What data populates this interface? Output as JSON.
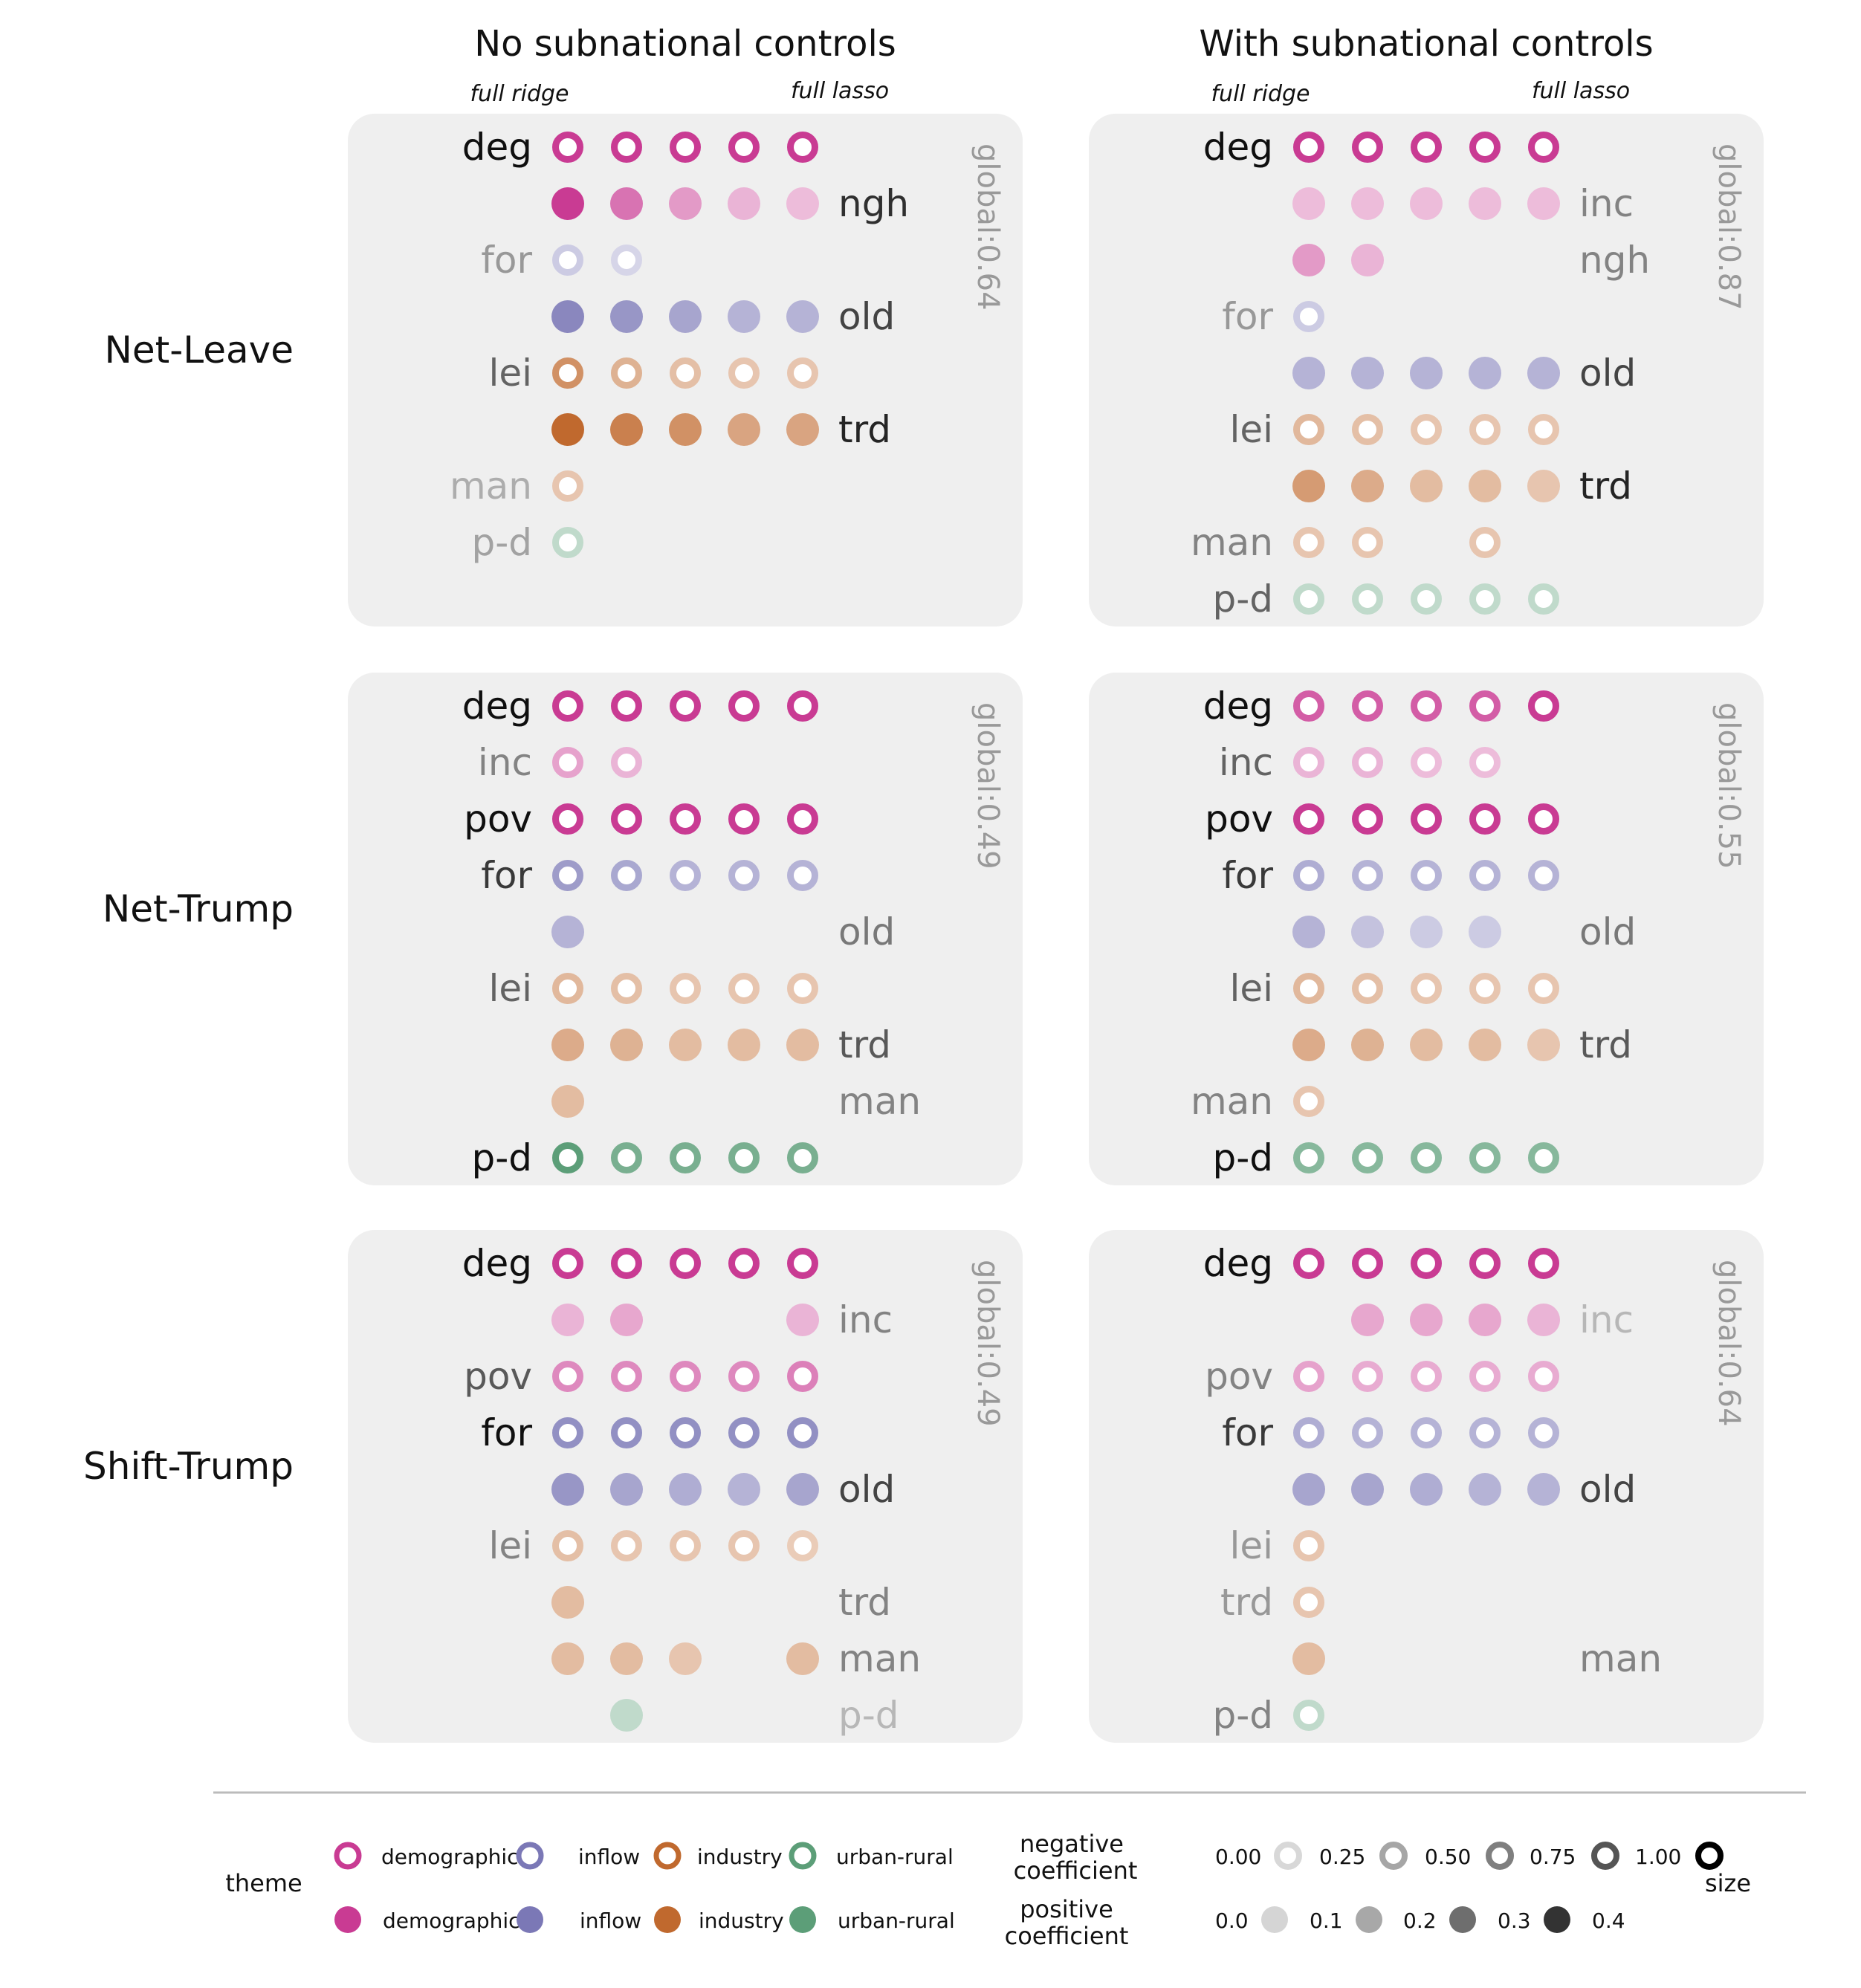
{
  "chart_data": {
    "type": "scatter",
    "columns": [
      {
        "title": "No subnational controls",
        "left_note": "full ridge",
        "right_note": "full lasso"
      },
      {
        "title": "With subnational controls",
        "left_note": "full ridge",
        "right_note": "full lasso"
      }
    ],
    "models": [
      "full ridge",
      "",
      "",
      "",
      "full lasso"
    ],
    "rows": [
      "Net-Leave",
      "Net-Trump",
      "Shift-Trump"
    ],
    "theme_colors": {
      "demographics": "#c93b93",
      "inflow": "#7b78b6",
      "industry": "#c0692e",
      "urban-rural": "#5c9e78"
    },
    "panels": [
      {
        "row": "Net-Leave",
        "column": "No subnational controls",
        "global": "global:0.64",
        "variables": [
          {
            "label": "deg",
            "side": "left",
            "theme": "demographics",
            "sign": "negative",
            "values": [
              1.0,
              1.0,
              1.0,
              1.0,
              1.0
            ],
            "freq": 1.0
          },
          {
            "label": "ngh",
            "side": "right",
            "theme": "demographics",
            "sign": "positive",
            "values": [
              0.4,
              0.27,
              0.18,
              0.12,
              0.1
            ],
            "freq": 0.85
          },
          {
            "label": "for",
            "side": "left",
            "theme": "inflow",
            "sign": "negative",
            "values": [
              0.3,
              0.22,
              null,
              null,
              null
            ],
            "freq": 0.35
          },
          {
            "label": "old",
            "side": "right",
            "theme": "inflow",
            "sign": "positive",
            "values": [
              0.35,
              0.3,
              0.25,
              0.2,
              0.2
            ],
            "freq": 0.75
          },
          {
            "label": "lei",
            "side": "left",
            "theme": "industry",
            "sign": "negative",
            "values": [
              0.7,
              0.45,
              0.35,
              0.3,
              0.3
            ],
            "freq": 0.6
          },
          {
            "label": "trd",
            "side": "right",
            "theme": "industry",
            "sign": "positive",
            "values": [
              0.4,
              0.33,
              0.28,
              0.22,
              0.22
            ],
            "freq": 0.9
          },
          {
            "label": "man",
            "side": "left",
            "theme": "industry",
            "sign": "negative",
            "values": [
              0.3,
              null,
              null,
              null,
              null
            ],
            "freq": 0.25
          },
          {
            "label": "p-d",
            "side": "left",
            "theme": "urban-rural",
            "sign": "negative",
            "values": [
              0.3,
              null,
              null,
              null,
              null
            ],
            "freq": 0.3
          }
        ]
      },
      {
        "row": "Net-Leave",
        "column": "With subnational controls",
        "global": "global:0.87",
        "variables": [
          {
            "label": "deg",
            "side": "left",
            "theme": "demographics",
            "sign": "negative",
            "values": [
              1.0,
              1.0,
              1.0,
              1.0,
              1.0
            ],
            "freq": 1.0
          },
          {
            "label": "inc",
            "side": "right",
            "theme": "demographics",
            "sign": "positive",
            "values": [
              0.1,
              0.1,
              0.1,
              0.1,
              0.1
            ],
            "freq": 0.45
          },
          {
            "label": "ngh",
            "side": "right",
            "theme": "demographics",
            "sign": "positive",
            "values": [
              0.18,
              0.12,
              null,
              null,
              null
            ],
            "freq": 0.45
          },
          {
            "label": "for",
            "side": "left",
            "theme": "inflow",
            "sign": "negative",
            "values": [
              0.3,
              null,
              null,
              null,
              null
            ],
            "freq": 0.35
          },
          {
            "label": "old",
            "side": "right",
            "theme": "inflow",
            "sign": "positive",
            "values": [
              0.2,
              0.2,
              0.2,
              0.2,
              0.2
            ],
            "freq": 0.75
          },
          {
            "label": "lei",
            "side": "left",
            "theme": "industry",
            "sign": "negative",
            "values": [
              0.4,
              0.35,
              0.3,
              0.3,
              0.3
            ],
            "freq": 0.6
          },
          {
            "label": "trd",
            "side": "right",
            "theme": "industry",
            "sign": "positive",
            "values": [
              0.25,
              0.2,
              0.15,
              0.15,
              0.12
            ],
            "freq": 0.9
          },
          {
            "label": "man",
            "side": "left",
            "theme": "industry",
            "sign": "negative",
            "values": [
              0.3,
              0.3,
              null,
              0.3,
              null
            ],
            "freq": 0.45
          },
          {
            "label": "p-d",
            "side": "left",
            "theme": "urban-rural",
            "sign": "negative",
            "values": [
              0.3,
              0.3,
              0.3,
              0.3,
              0.3
            ],
            "freq": 0.6
          }
        ]
      },
      {
        "row": "Net-Trump",
        "column": "No subnational controls",
        "global": "global:0.49",
        "variables": [
          {
            "label": "deg",
            "side": "left",
            "theme": "demographics",
            "sign": "negative",
            "values": [
              1.0,
              1.0,
              1.0,
              1.0,
              1.0
            ],
            "freq": 1.0
          },
          {
            "label": "inc",
            "side": "left",
            "theme": "demographics",
            "sign": "negative",
            "values": [
              0.4,
              0.3,
              null,
              null,
              null
            ],
            "freq": 0.45
          },
          {
            "label": "pov",
            "side": "left",
            "theme": "demographics",
            "sign": "negative",
            "values": [
              1.0,
              1.0,
              1.0,
              1.0,
              1.0
            ],
            "freq": 1.0
          },
          {
            "label": "for",
            "side": "left",
            "theme": "inflow",
            "sign": "negative",
            "values": [
              0.7,
              0.6,
              0.5,
              0.5,
              0.5
            ],
            "freq": 0.8
          },
          {
            "label": "old",
            "side": "right",
            "theme": "inflow",
            "sign": "positive",
            "values": [
              0.2,
              null,
              null,
              null,
              null
            ],
            "freq": 0.5
          },
          {
            "label": "lei",
            "side": "left",
            "theme": "industry",
            "sign": "negative",
            "values": [
              0.4,
              0.35,
              0.3,
              0.3,
              0.3
            ],
            "freq": 0.6
          },
          {
            "label": "trd",
            "side": "right",
            "theme": "industry",
            "sign": "positive",
            "values": [
              0.2,
              0.18,
              0.15,
              0.15,
              0.15
            ],
            "freq": 0.65
          },
          {
            "label": "man",
            "side": "right",
            "theme": "industry",
            "sign": "positive",
            "values": [
              0.15,
              null,
              null,
              null,
              null
            ],
            "freq": 0.45
          },
          {
            "label": "p-d",
            "side": "left",
            "theme": "urban-rural",
            "sign": "negative",
            "values": [
              1.0,
              0.8,
              0.8,
              0.8,
              0.8
            ],
            "freq": 1.0
          }
        ]
      },
      {
        "row": "Net-Trump",
        "column": "With subnational controls",
        "global": "global:0.55",
        "variables": [
          {
            "label": "deg",
            "side": "left",
            "theme": "demographics",
            "sign": "negative",
            "values": [
              0.8,
              0.8,
              0.8,
              0.8,
              1.0
            ],
            "freq": 1.0
          },
          {
            "label": "inc",
            "side": "left",
            "theme": "demographics",
            "sign": "negative",
            "values": [
              0.3,
              0.3,
              0.25,
              0.25,
              null
            ],
            "freq": 0.6
          },
          {
            "label": "pov",
            "side": "left",
            "theme": "demographics",
            "sign": "negative",
            "values": [
              1.0,
              1.0,
              1.0,
              1.0,
              1.0
            ],
            "freq": 1.0
          },
          {
            "label": "for",
            "side": "left",
            "theme": "inflow",
            "sign": "negative",
            "values": [
              0.55,
              0.5,
              0.5,
              0.5,
              0.5
            ],
            "freq": 0.8
          },
          {
            "label": "old",
            "side": "right",
            "theme": "inflow",
            "sign": "positive",
            "values": [
              0.2,
              0.15,
              0.12,
              0.12,
              null
            ],
            "freq": 0.5
          },
          {
            "label": "lei",
            "side": "left",
            "theme": "industry",
            "sign": "negative",
            "values": [
              0.4,
              0.35,
              0.3,
              0.3,
              0.3
            ],
            "freq": 0.6
          },
          {
            "label": "trd",
            "side": "right",
            "theme": "industry",
            "sign": "positive",
            "values": [
              0.2,
              0.18,
              0.15,
              0.15,
              0.12
            ],
            "freq": 0.65
          },
          {
            "label": "man",
            "side": "left",
            "theme": "industry",
            "sign": "negative",
            "values": [
              0.3,
              null,
              null,
              null,
              null
            ],
            "freq": 0.45
          },
          {
            "label": "p-d",
            "side": "left",
            "theme": "urban-rural",
            "sign": "negative",
            "values": [
              0.7,
              0.7,
              0.7,
              0.7,
              0.7
            ],
            "freq": 1.0
          }
        ]
      },
      {
        "row": "Shift-Trump",
        "column": "No subnational controls",
        "global": "global:0.49",
        "variables": [
          {
            "label": "deg",
            "side": "left",
            "theme": "demographics",
            "sign": "negative",
            "values": [
              1.0,
              1.0,
              1.0,
              1.0,
              1.0
            ],
            "freq": 1.0
          },
          {
            "label": "inc",
            "side": "right",
            "theme": "demographics",
            "sign": "positive",
            "values": [
              0.12,
              0.15,
              null,
              null,
              0.12
            ],
            "freq": 0.45
          },
          {
            "label": "pov",
            "side": "left",
            "theme": "demographics",
            "sign": "negative",
            "values": [
              0.55,
              0.55,
              0.55,
              0.55,
              0.6
            ],
            "freq": 0.65
          },
          {
            "label": "for",
            "side": "left",
            "theme": "inflow",
            "sign": "negative",
            "values": [
              0.8,
              0.8,
              0.8,
              0.8,
              0.8
            ],
            "freq": 1.0
          },
          {
            "label": "old",
            "side": "right",
            "theme": "inflow",
            "sign": "positive",
            "values": [
              0.3,
              0.25,
              0.22,
              0.2,
              0.25
            ],
            "freq": 0.75
          },
          {
            "label": "lei",
            "side": "left",
            "theme": "industry",
            "sign": "negative",
            "values": [
              0.35,
              0.3,
              0.3,
              0.3,
              0.25
            ],
            "freq": 0.45
          },
          {
            "label": "trd",
            "side": "right",
            "theme": "industry",
            "sign": "positive",
            "values": [
              0.15,
              null,
              null,
              null,
              null
            ],
            "freq": 0.45
          },
          {
            "label": "man",
            "side": "right",
            "theme": "industry",
            "sign": "positive",
            "values": [
              0.15,
              0.15,
              0.12,
              null,
              0.15
            ],
            "freq": 0.45
          },
          {
            "label": "p-d",
            "side": "right",
            "theme": "urban-rural",
            "sign": "positive",
            "values": [
              null,
              0.12,
              null,
              null,
              null
            ],
            "freq": 0.2
          }
        ]
      },
      {
        "row": "Shift-Trump",
        "column": "With subnational controls",
        "global": "global:0.64",
        "variables": [
          {
            "label": "deg",
            "side": "left",
            "theme": "demographics",
            "sign": "negative",
            "values": [
              1.0,
              1.0,
              1.0,
              1.0,
              1.0
            ],
            "freq": 1.0
          },
          {
            "label": "inc",
            "side": "right",
            "theme": "demographics",
            "sign": "positive",
            "values": [
              null,
              0.15,
              0.15,
              0.15,
              0.12
            ],
            "freq": 0.2
          },
          {
            "label": "pov",
            "side": "left",
            "theme": "demographics",
            "sign": "negative",
            "values": [
              0.4,
              0.35,
              0.35,
              0.35,
              0.35
            ],
            "freq": 0.45
          },
          {
            "label": "for",
            "side": "left",
            "theme": "inflow",
            "sign": "negative",
            "values": [
              0.55,
              0.5,
              0.5,
              0.5,
              0.5
            ],
            "freq": 0.8
          },
          {
            "label": "old",
            "side": "right",
            "theme": "inflow",
            "sign": "positive",
            "values": [
              0.25,
              0.25,
              0.22,
              0.2,
              0.2
            ],
            "freq": 0.75
          },
          {
            "label": "lei",
            "side": "left",
            "theme": "industry",
            "sign": "negative",
            "values": [
              0.3,
              null,
              null,
              null,
              null
            ],
            "freq": 0.35
          },
          {
            "label": "trd",
            "side": "left",
            "theme": "industry",
            "sign": "negative",
            "values": [
              0.3,
              null,
              null,
              null,
              null
            ],
            "freq": 0.35
          },
          {
            "label": "man",
            "side": "right",
            "theme": "industry",
            "sign": "positive",
            "values": [
              0.15,
              null,
              null,
              null,
              null
            ],
            "freq": 0.45
          },
          {
            "label": "p-d",
            "side": "left",
            "theme": "urban-rural",
            "sign": "negative",
            "values": [
              0.3,
              null,
              null,
              null,
              null
            ],
            "freq": 0.45
          }
        ]
      }
    ],
    "legend": {
      "theme_label": "theme",
      "size_label": "size",
      "negative_label": [
        "negative",
        "coefficient"
      ],
      "positive_label": [
        "positive",
        "coefficient"
      ],
      "themes": [
        "demographics",
        "inflow",
        "industry",
        "urban-rural"
      ],
      "negative_scale": [
        "0.00",
        "0.25",
        "0.50",
        "0.75",
        "1.00"
      ],
      "positive_scale": [
        "0.0",
        "0.1",
        "0.2",
        "0.3",
        "0.4"
      ]
    }
  }
}
